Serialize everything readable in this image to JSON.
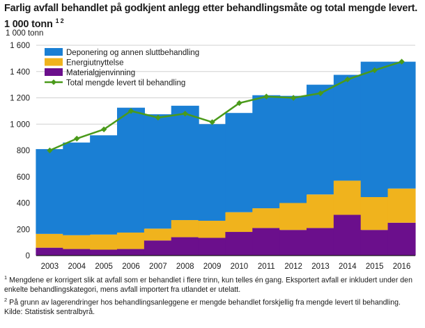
{
  "title": "Farlig avfall behandlet på godkjent anlegg etter behandlingsmåte og total mengde levert. 1 000 tonn",
  "title_sup": "1 2",
  "unit_label": "1 000 tonn",
  "colors": {
    "deponering": "#1a7fd4",
    "energi": "#f0b31d",
    "material": "#6b0f8c",
    "total": "#4a9a1a",
    "grid": "#d0d0d0",
    "axis": "#1a1a1a"
  },
  "chart_data": {
    "type": "bar",
    "stacked": true,
    "categories": [
      "2003",
      "2004",
      "2005",
      "2006",
      "2007",
      "2008",
      "2009",
      "2010",
      "2011",
      "2012",
      "2013",
      "2014",
      "2015",
      "2016"
    ],
    "ylim": [
      0,
      1600
    ],
    "yticks": [
      0,
      200,
      400,
      600,
      800,
      1000,
      1200,
      1400,
      1600
    ],
    "ytick_labels": [
      "0",
      "200",
      "400",
      "600",
      "800",
      "1 000",
      "1 200",
      "1 400",
      "1 600"
    ],
    "grid": true,
    "legend_position": "top-left",
    "series": [
      {
        "name": "Materialgjenvinning",
        "type": "bar",
        "color": "#6b0f8c",
        "values": [
          60,
          50,
          45,
          50,
          115,
          140,
          135,
          180,
          210,
          195,
          210,
          310,
          195,
          250
        ]
      },
      {
        "name": "Energiutnyttelse",
        "type": "bar",
        "color": "#f0b31d",
        "values": [
          105,
          105,
          115,
          125,
          90,
          130,
          130,
          150,
          150,
          205,
          255,
          260,
          250,
          260
        ]
      },
      {
        "name": "Deponering og annen sluttbehandling",
        "type": "bar",
        "color": "#1a7fd4",
        "values": [
          645,
          705,
          755,
          950,
          870,
          870,
          735,
          755,
          860,
          815,
          835,
          805,
          1030,
          965
        ]
      },
      {
        "name": "Total mengde levert til behandling",
        "type": "line",
        "color": "#4a9a1a",
        "values": [
          800,
          890,
          960,
          1100,
          1050,
          1080,
          1015,
          1160,
          1210,
          1200,
          1235,
          1340,
          1410,
          1475
        ]
      }
    ],
    "legend_order": [
      "Deponering og annen sluttbehandling",
      "Energiutnyttelse",
      "Materialgjenvinning",
      "Total mengde levert til behandling"
    ]
  },
  "notes": [
    {
      "sup": "1",
      "text": "Mengdene er korrigert slik at avfall som er behandlet i flere trinn, kun telles én gang. Eksportert avfall er inkludert under den enkelte behandlingskategori, mens avfall importert fra utlandet er utelatt."
    },
    {
      "sup": "2",
      "text": "På grunn av lagerendringer hos behandlingsanleggene er mengde behandlet forskjellig fra mengde levert til behandling."
    },
    {
      "sup": "",
      "text": "Kilde: Statistisk sentralbyrå."
    }
  ]
}
